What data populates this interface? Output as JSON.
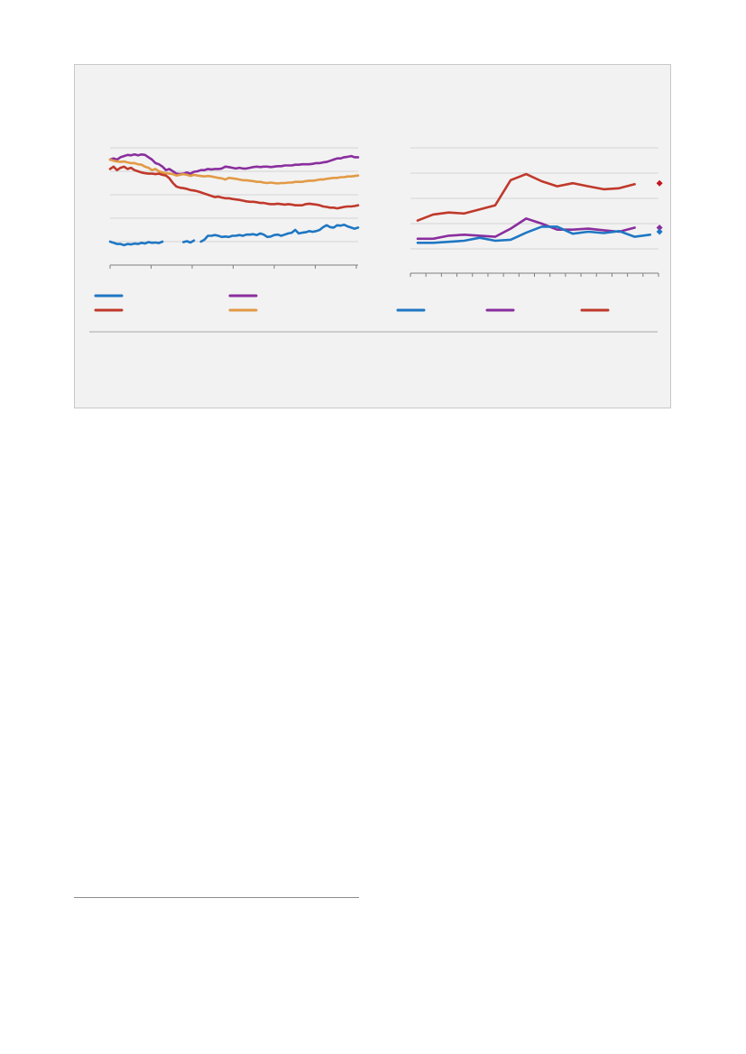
{
  "colors": {
    "blue": "#1f77c3",
    "purple": "#8a2e9e",
    "red": "#c0392b",
    "orange": "#e29a45",
    "marker_red": "#c0161f",
    "grid": "#d4d4d4",
    "axis": "#7f7f7f"
  },
  "chart_data": [
    {
      "type": "line",
      "grid": true,
      "ylim": [
        0,
        5
      ],
      "x_ticks": 7,
      "series": [
        {
          "color": "blue",
          "values": [
            1.0,
            0.95,
            0.9,
            0.9,
            0.85,
            0.9,
            0.88,
            0.92,
            0.9,
            0.95,
            0.92,
            0.98,
            0.95,
            0.96,
            0.94,
            1.0,
            null,
            null,
            null,
            null,
            null,
            0.98,
            1.02,
            0.96,
            1.05,
            null,
            1.0,
            1.08,
            1.25,
            1.25,
            1.28,
            1.25,
            1.2,
            1.22,
            1.2,
            1.25,
            1.25,
            1.28,
            1.25,
            1.3,
            1.3,
            1.32,
            1.28,
            1.35,
            1.3,
            1.2,
            1.22,
            1.28,
            1.3,
            1.25,
            1.3,
            1.35,
            1.38,
            1.5,
            1.35,
            1.38,
            1.4,
            1.45,
            1.42,
            1.45,
            1.5,
            1.62,
            1.7,
            1.62,
            1.6,
            1.7,
            1.68,
            1.72,
            1.65,
            1.6,
            1.55,
            1.6
          ]
        },
        {
          "color": "purple",
          "values": [
            4.5,
            4.55,
            4.5,
            4.6,
            4.65,
            4.7,
            4.68,
            4.72,
            4.68,
            4.72,
            4.7,
            4.6,
            4.5,
            4.35,
            4.3,
            4.2,
            4.05,
            4.1,
            4.0,
            3.9,
            3.88,
            3.9,
            3.95,
            3.9,
            3.98,
            4.0,
            4.05,
            4.05,
            4.1,
            4.08,
            4.1,
            4.1,
            4.12,
            4.2,
            4.18,
            4.15,
            4.12,
            4.15,
            4.12,
            4.12,
            4.15,
            4.18,
            4.2,
            4.18,
            4.2,
            4.2,
            4.18,
            4.2,
            4.22,
            4.22,
            4.25,
            4.25,
            4.25,
            4.28,
            4.28,
            4.3,
            4.3,
            4.3,
            4.32,
            4.35,
            4.35,
            4.38,
            4.4,
            4.45,
            4.5,
            4.55,
            4.55,
            4.6,
            4.62,
            4.65,
            4.6,
            4.6
          ]
        },
        {
          "color": "orange",
          "values": [
            4.5,
            4.45,
            4.42,
            4.4,
            4.42,
            4.38,
            4.35,
            4.35,
            4.3,
            4.28,
            4.2,
            4.15,
            4.05,
            4.1,
            4.0,
            3.95,
            3.92,
            3.9,
            3.88,
            3.82,
            3.85,
            3.88,
            3.85,
            3.8,
            3.85,
            3.82,
            3.8,
            3.78,
            3.8,
            3.78,
            3.75,
            3.72,
            3.7,
            3.65,
            3.72,
            3.7,
            3.68,
            3.65,
            3.62,
            3.62,
            3.6,
            3.58,
            3.55,
            3.55,
            3.52,
            3.5,
            3.52,
            3.5,
            3.48,
            3.5,
            3.5,
            3.52,
            3.52,
            3.55,
            3.55,
            3.55,
            3.58,
            3.6,
            3.6,
            3.62,
            3.65,
            3.65,
            3.68,
            3.7,
            3.72,
            3.72,
            3.75,
            3.75,
            3.78,
            3.78,
            3.8,
            3.82
          ]
        },
        {
          "color": "red",
          "values": [
            4.1,
            4.2,
            4.05,
            4.15,
            4.2,
            4.1,
            4.15,
            4.05,
            4.0,
            3.95,
            3.92,
            3.9,
            3.9,
            3.88,
            3.9,
            3.85,
            3.82,
            3.7,
            3.5,
            3.35,
            3.3,
            3.28,
            3.25,
            3.2,
            3.18,
            3.15,
            3.1,
            3.05,
            3.0,
            2.95,
            2.9,
            2.92,
            2.88,
            2.85,
            2.85,
            2.82,
            2.8,
            2.78,
            2.75,
            2.72,
            2.7,
            2.7,
            2.68,
            2.65,
            2.65,
            2.62,
            2.6,
            2.6,
            2.62,
            2.6,
            2.58,
            2.6,
            2.58,
            2.55,
            2.55,
            2.55,
            2.6,
            2.62,
            2.6,
            2.58,
            2.55,
            2.5,
            2.48,
            2.45,
            2.45,
            2.42,
            2.45,
            2.48,
            2.5,
            2.5,
            2.52,
            2.55
          ]
        }
      ]
    },
    {
      "type": "line",
      "grid": true,
      "ylim": [
        0,
        5
      ],
      "x_ticks": 17,
      "series": [
        {
          "color": "red",
          "values": [
            1.4,
            1.7,
            1.8,
            1.75,
            1.95,
            2.15,
            3.4,
            3.7,
            3.35,
            3.1,
            3.25,
            3.1,
            2.95,
            3.0,
            3.2
          ]
        },
        {
          "color": "purple",
          "values": [
            0.5,
            0.5,
            0.65,
            0.7,
            0.65,
            0.6,
            1.0,
            1.5,
            1.25,
            0.95,
            0.95,
            1.0,
            0.92,
            0.85,
            1.05
          ]
        },
        {
          "color": "blue",
          "values": [
            0.3,
            0.3,
            0.35,
            0.4,
            0.55,
            0.4,
            0.45,
            0.8,
            1.1,
            1.1,
            0.75,
            0.85,
            0.78,
            0.88,
            0.6,
            0.7
          ]
        }
      ],
      "markers": [
        {
          "color": "marker_red",
          "value": 3.25
        },
        {
          "color": "purple",
          "value": 1.05
        },
        {
          "color": "blue",
          "value": 0.85
        }
      ]
    }
  ],
  "legend": [
    {
      "color": "blue"
    },
    {
      "color": "purple"
    },
    {
      "color": "red"
    },
    {
      "color": "orange"
    },
    {
      "color": "blue"
    },
    {
      "color": "purple"
    },
    {
      "color": "red"
    }
  ]
}
